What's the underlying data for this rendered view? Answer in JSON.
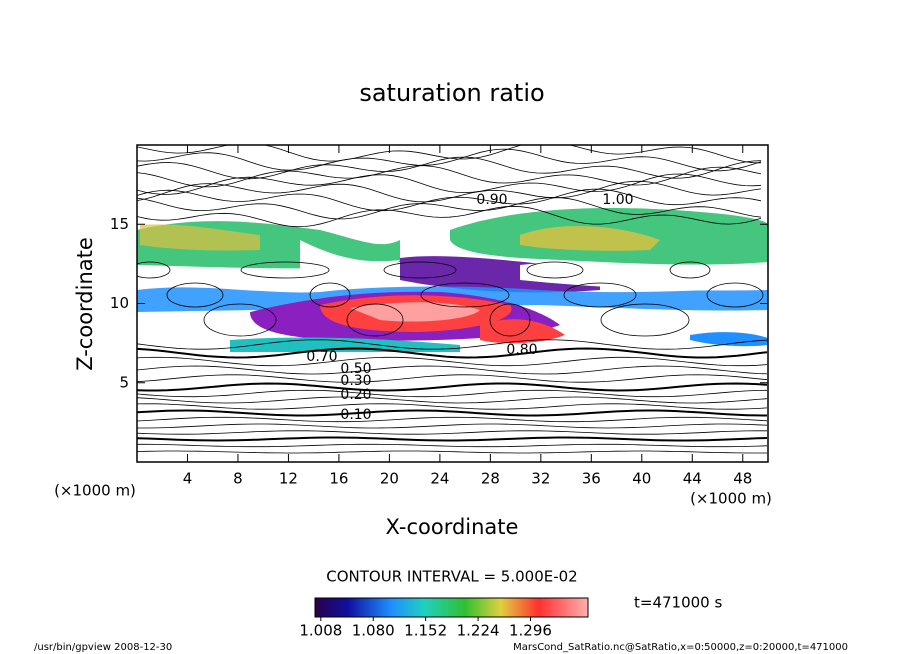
{
  "chart_data": {
    "type": "contour",
    "title": "saturation ratio",
    "x_label": "X-coordinate",
    "y_label": "Z-coordinate",
    "x_unit": "(×1000 m)",
    "y_unit": "(×1000 m)",
    "xlim": [
      0,
      50
    ],
    "ylim": [
      0,
      20
    ],
    "xticks": [
      4,
      8,
      12,
      16,
      20,
      24,
      28,
      32,
      36,
      40,
      44,
      48
    ],
    "yticks": [
      5,
      10,
      15
    ],
    "contour_interval_label": "CONTOUR INTERVAL = 5.000E-02",
    "contour_labels": [
      {
        "value": 0.1,
        "label": "0.10"
      },
      {
        "value": 0.2,
        "label": "0.20"
      },
      {
        "value": 0.3,
        "label": "0.30"
      },
      {
        "value": 0.5,
        "label": "0.50"
      },
      {
        "value": 0.7,
        "label": "0.70"
      },
      {
        "value": 0.8,
        "label": "0.80"
      },
      {
        "value": 0.9,
        "label": "0.90"
      },
      {
        "value": 1.0,
        "label": "1.00"
      }
    ],
    "colorbar": {
      "clim": [
        1.0,
        1.375
      ],
      "ticks": [
        {
          "value": 1.008,
          "label": "1.008"
        },
        {
          "value": 1.08,
          "label": "1.080"
        },
        {
          "value": 1.152,
          "label": "1.152"
        },
        {
          "value": 1.224,
          "label": "1.224"
        },
        {
          "value": 1.296,
          "label": "1.296"
        }
      ]
    },
    "time_label": "t=471000 s"
  },
  "footer": {
    "left": "/usr/bin/gpview  2008-12-30",
    "right": "MarsCond_SatRatio.nc@SatRatio,x=0:50000,z=0:20000,t=471000"
  }
}
